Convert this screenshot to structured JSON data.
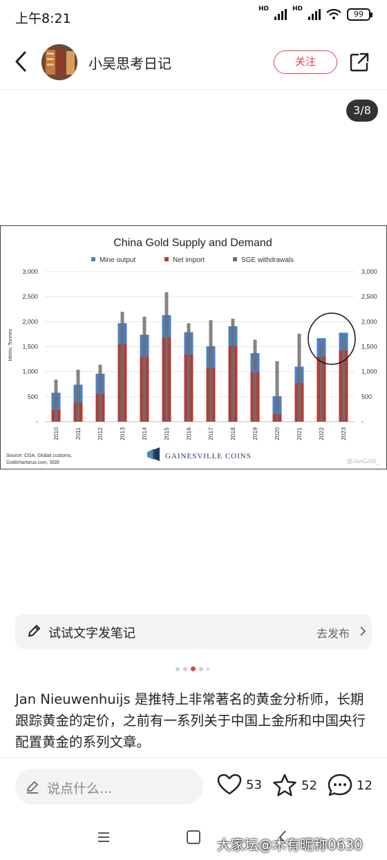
{
  "status": {
    "time": "上午8:21",
    "battery": "99",
    "hd1": "HD",
    "hd2": "HD"
  },
  "header": {
    "author": "小吴思考日记",
    "follow_label": "关注"
  },
  "counter": "3/8",
  "chart_data": {
    "type": "bar",
    "title": "China Gold Supply and Demand",
    "ylabel": "Metric Tonnes",
    "ylim": [
      0,
      3000
    ],
    "yticks": [
      "-",
      "500",
      "1,000",
      "1,500",
      "2,000",
      "2,500",
      "3,000"
    ],
    "categories": [
      "2010",
      "2011",
      "2012",
      "2013",
      "2014",
      "2015",
      "2016",
      "2017",
      "2018",
      "2019",
      "2020",
      "2021",
      "2022",
      "2023"
    ],
    "series": [
      {
        "name": "Mine output",
        "color": "#4a7fc9",
        "values": [
          580,
          740,
          960,
          1970,
          1740,
          2130,
          1790,
          1510,
          1910,
          1370,
          510,
          1100,
          1670,
          1780
        ]
      },
      {
        "name": "Net import",
        "color": "#b53a35",
        "values": [
          240,
          380,
          560,
          1550,
          1300,
          1680,
          1340,
          1080,
          1510,
          990,
          150,
          770,
          1300,
          1420
        ]
      },
      {
        "name": "SGE withdrawals",
        "color": "#6e6e6e",
        "values": [
          840,
          1040,
          1140,
          2200,
          2100,
          2590,
          1970,
          2030,
          2060,
          1640,
          1210,
          1760,
          1570,
          1690
        ]
      }
    ],
    "source": "Source: CGA, Global customs,",
    "source2": "Goldchartsrus.com, SGE",
    "brand": "Gainesville Coins",
    "handle": "@JanGold_",
    "annotation": "circle around 2022–2023"
  },
  "draft": {
    "label": "试试文字发笔记",
    "action": "去发布"
  },
  "pager": {
    "count": 5,
    "active": 3
  },
  "article": {
    "text": "Jan Nieuwenhuijs 是推特上非常著名的黄金分析师，长期跟踪黄金的定价，之前有一系列关于中国上金所和中国央行配置黄金的系列文章。"
  },
  "bottom": {
    "comment_placeholder": "说点什么...",
    "likes": "53",
    "favorites": "52",
    "comments": "12"
  },
  "watermark": "大家坛@木有昵称0630",
  "icons": [
    "back-icon",
    "share-icon",
    "pen-icon",
    "heart-icon",
    "star-icon",
    "comment-bubble-icon"
  ]
}
